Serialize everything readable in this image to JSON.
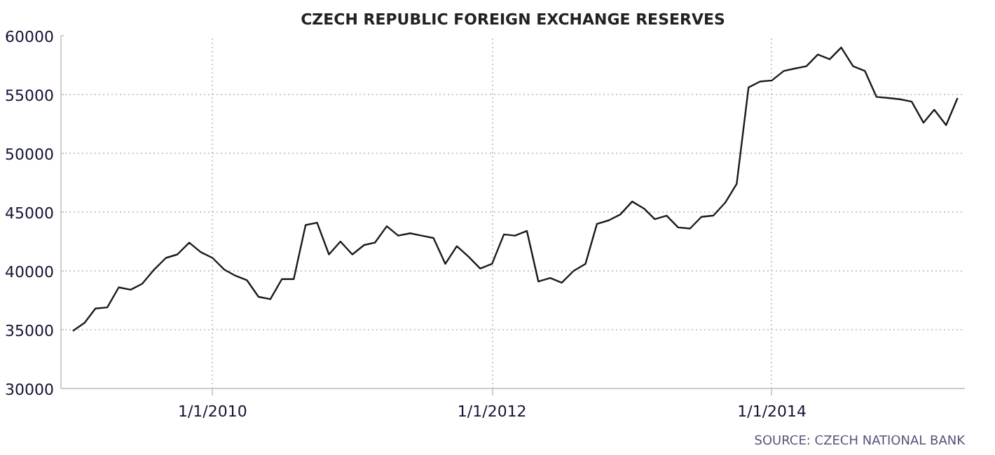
{
  "chart_data": {
    "type": "line",
    "title": "CZECH REPUBLIC FOREIGN EXCHANGE RESERVES",
    "x": [
      "2009-01",
      "2009-02",
      "2009-03",
      "2009-04",
      "2009-05",
      "2009-06",
      "2009-07",
      "2009-08",
      "2009-09",
      "2009-10",
      "2009-11",
      "2009-12",
      "2010-01",
      "2010-02",
      "2010-03",
      "2010-04",
      "2010-05",
      "2010-06",
      "2010-07",
      "2010-08",
      "2010-09",
      "2010-10",
      "2010-11",
      "2010-12",
      "2011-01",
      "2011-02",
      "2011-03",
      "2011-04",
      "2011-05",
      "2011-06",
      "2011-07",
      "2011-08",
      "2011-09",
      "2011-10",
      "2011-11",
      "2011-12",
      "2012-01",
      "2012-02",
      "2012-03",
      "2012-04",
      "2012-05",
      "2012-06",
      "2012-07",
      "2012-08",
      "2012-09",
      "2012-10",
      "2012-11",
      "2012-12",
      "2013-01",
      "2013-02",
      "2013-03",
      "2013-04",
      "2013-05",
      "2013-06",
      "2013-07",
      "2013-08",
      "2013-09",
      "2013-10",
      "2013-11",
      "2013-12",
      "2014-01",
      "2014-02",
      "2014-03",
      "2014-04",
      "2014-05",
      "2014-06",
      "2014-07",
      "2014-08",
      "2014-09",
      "2014-10",
      "2014-11",
      "2014-12",
      "2015-01",
      "2015-02",
      "2015-03",
      "2015-04",
      "2015-05"
    ],
    "series": [
      {
        "color": "#1a1a1a",
        "values": [
          34900,
          35600,
          36800,
          36900,
          38600,
          38400,
          38900,
          40100,
          41100,
          41400,
          42400,
          41600,
          41100,
          40100,
          39600,
          39200,
          37800,
          37600,
          39300,
          39300,
          43900,
          44100,
          41400,
          42500,
          41400,
          42200,
          42400,
          43800,
          43000,
          43200,
          43000,
          42800,
          40600,
          42100,
          41200,
          40200,
          40600,
          43100,
          43000,
          43400,
          39100,
          39400,
          39000,
          40000,
          40600,
          44000,
          44300,
          44800,
          45900,
          45300,
          44400,
          44700,
          43700,
          43600,
          44600,
          44700,
          45800,
          47400,
          55600,
          56100,
          56200,
          57000,
          57200,
          57400,
          58400,
          58000,
          59000,
          57400,
          57000,
          54800,
          54700,
          54600,
          54400,
          52600,
          53700,
          52400,
          54700
        ]
      }
    ],
    "xlim": [
      "2008-12",
      "2015-05-20"
    ],
    "xticks": [
      {
        "value": "2010-01-01",
        "label": "1/1/2010"
      },
      {
        "value": "2012-01-01",
        "label": "1/1/2012"
      },
      {
        "value": "2014-01-01",
        "label": "1/1/2014"
      }
    ],
    "ylim": [
      30000,
      60000
    ],
    "yticks": [
      30000,
      35000,
      40000,
      45000,
      50000,
      55000,
      60000
    ],
    "grid": true,
    "marker": "none",
    "line_style": "solid",
    "annotations": [
      "SOURCE: CZECH NATIONAL BANK"
    ]
  }
}
